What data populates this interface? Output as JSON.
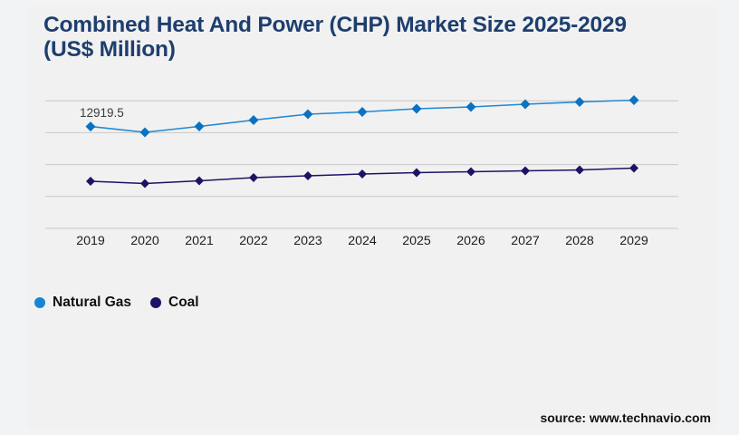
{
  "page": {
    "title_line1": "Combined Heat And Power (CHP) Market Size 2025-2029",
    "title_line2": "(US$ Million)",
    "source": "source: www.technavio.com"
  },
  "legend": {
    "items": [
      {
        "label": "Natural Gas",
        "color": "#1786d2"
      },
      {
        "label": "Coal",
        "color": "#1b1464"
      }
    ]
  },
  "colors": {
    "background": "#f1f1f1",
    "page_background": "#f2f3f5",
    "title": "#1e3e6e",
    "gridline": "#c9c9c9",
    "natural_gas_line": "#2189d2",
    "natural_gas_marker": "#0b72c2",
    "coal_line": "#1b1464",
    "coal_marker": "#1b1464",
    "tick_label": "#1c1c1c",
    "annotation": "#3a3a3a"
  },
  "chart_data": {
    "type": "line",
    "title": "Combined Heat And Power (CHP) Market Size 2025-2029 (US$ Million)",
    "categories": [
      "2019",
      "2020",
      "2021",
      "2022",
      "2023",
      "2024",
      "2025",
      "2026",
      "2027",
      "2028",
      "2029"
    ],
    "series": [
      {
        "name": "Natural Gas",
        "marker": "diamond",
        "values": [
          12919.5,
          12184,
          12930,
          13735,
          14480,
          14770,
          15170,
          15400,
          15745,
          16035,
          16265
        ]
      },
      {
        "name": "Coal",
        "marker": "diamond",
        "values": [
          5975,
          5690,
          6035,
          6435,
          6665,
          6895,
          7070,
          7185,
          7300,
          7415,
          7645
        ]
      }
    ],
    "annotations": [
      {
        "series": "Natural Gas",
        "category": "2019",
        "label": "12919.5"
      }
    ],
    "xlabel": "",
    "ylabel": "",
    "ylim": [
      0,
      20000
    ],
    "y_axis_visible": false,
    "gridline_count": 5,
    "grid": true,
    "legend_position": "bottom-left"
  }
}
